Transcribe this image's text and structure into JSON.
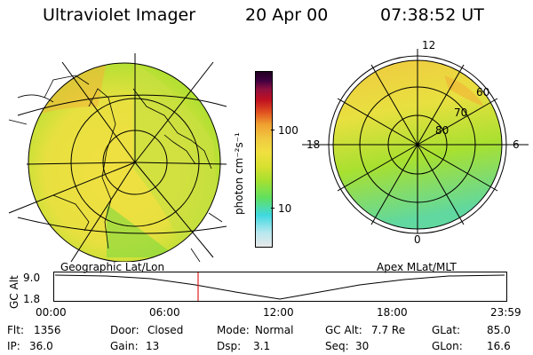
{
  "header": {
    "title": "Ultraviolet Imager",
    "date": "20 Apr 00",
    "time": "07:38:52 UT"
  },
  "colorbar": {
    "label": "photon cm⁻²s⁻¹",
    "ticks": [
      "100",
      "10"
    ],
    "colors": [
      "#e8e8e8",
      "#b8e8f0",
      "#40d8e0",
      "#60e060",
      "#a8e030",
      "#d8e030",
      "#f0e040",
      "#f0c840",
      "#f0a030",
      "#e05020",
      "#c01020",
      "#901040",
      "#400040",
      "#200020"
    ]
  },
  "left_map": {
    "label": "Geographic Lat/Lon"
  },
  "right_map": {
    "label": "Apex MLat/MLT",
    "mlt_labels": {
      "top": "12",
      "bottom": "0",
      "left": "18",
      "right": "6"
    },
    "lat_labels": [
      "60",
      "70",
      "80"
    ]
  },
  "altitude_plot": {
    "ylabel": "GC Alt",
    "yticks": [
      "9.0",
      "1.8"
    ],
    "xticks": [
      "00:00",
      "06:00",
      "12:00",
      "18:00",
      "23:59"
    ],
    "marker_time": "07:38"
  },
  "info": [
    [
      {
        "k": "Flt:",
        "v": "1356"
      },
      {
        "k": "Door:",
        "v": "Closed"
      },
      {
        "k": "Mode:",
        "v": "Normal"
      },
      {
        "k": "GC Alt:",
        "v": "7.7 Re"
      },
      {
        "k": "GLat:",
        "v": "85.0"
      }
    ],
    [
      {
        "k": "IP:",
        "v": "36.0"
      },
      {
        "k": "Gain:",
        "v": "13"
      },
      {
        "k": "Dsp:",
        "v": "3.1"
      },
      {
        "k": "Seq:",
        "v": "30"
      },
      {
        "k": "GLon:",
        "v": "16.6"
      }
    ]
  ]
}
